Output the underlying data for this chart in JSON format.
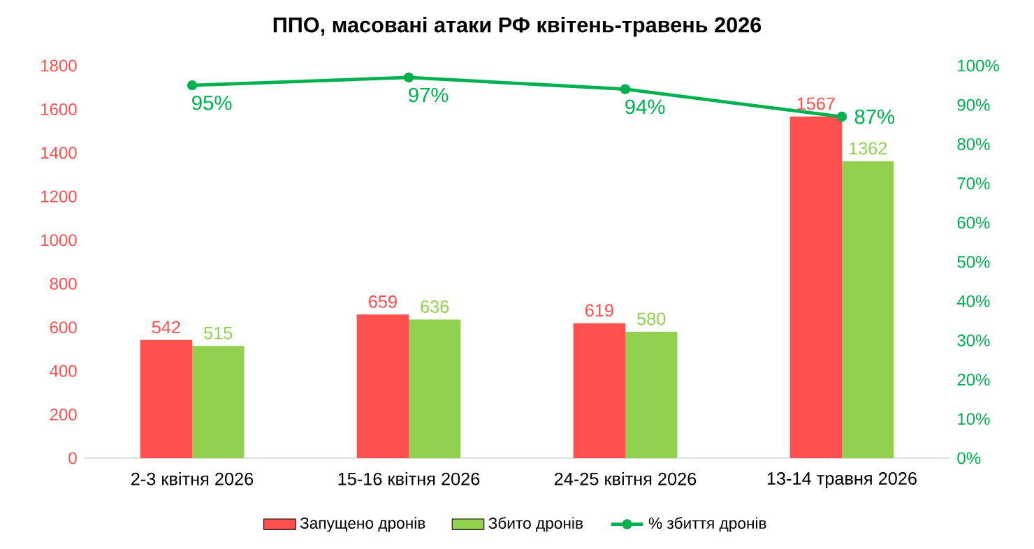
{
  "chart_data": {
    "type": "bar",
    "title": "ППО,  масовані атаки РФ квітень-травень 2026",
    "categories": [
      "2-3 квітня 2026",
      "15-16 квітня 2026",
      "24-25 квітня 2026",
      "13-14 травня 2026"
    ],
    "series": [
      {
        "name": "Запущено дронів",
        "color": "#ff5050",
        "values": [
          542,
          659,
          619,
          1567
        ],
        "value_labels": [
          "542",
          "659",
          "619",
          "1567"
        ]
      },
      {
        "name": "Збито дронів",
        "color": "#92d050",
        "values": [
          515,
          636,
          580,
          1362
        ],
        "value_labels": [
          "515",
          "636",
          "580",
          "1362"
        ]
      },
      {
        "name": "% збиття дронів",
        "type": "line",
        "axis": "y2",
        "color": "#00b050",
        "values": [
          95,
          97,
          94,
          87
        ],
        "value_labels": [
          "95%",
          "97%",
          "94%",
          "87%"
        ],
        "marker": "circle"
      }
    ],
    "ylim": [
      0,
      1800
    ],
    "yticks": [
      0,
      200,
      400,
      600,
      800,
      1000,
      1200,
      1400,
      1600,
      1800
    ],
    "y2lim": [
      0,
      100
    ],
    "y2ticks": [
      {
        "value": 0,
        "label": "0%"
      },
      {
        "value": 10,
        "label": "10%"
      },
      {
        "value": 20,
        "label": "20%"
      },
      {
        "value": 30,
        "label": "30%"
      },
      {
        "value": 40,
        "label": "40%"
      },
      {
        "value": 50,
        "label": "50%"
      },
      {
        "value": 60,
        "label": "60%"
      },
      {
        "value": 70,
        "label": "70%"
      },
      {
        "value": 80,
        "label": "80%"
      },
      {
        "value": 90,
        "label": "90%"
      },
      {
        "value": 100,
        "label": "100%"
      }
    ],
    "legend": "bottom"
  }
}
